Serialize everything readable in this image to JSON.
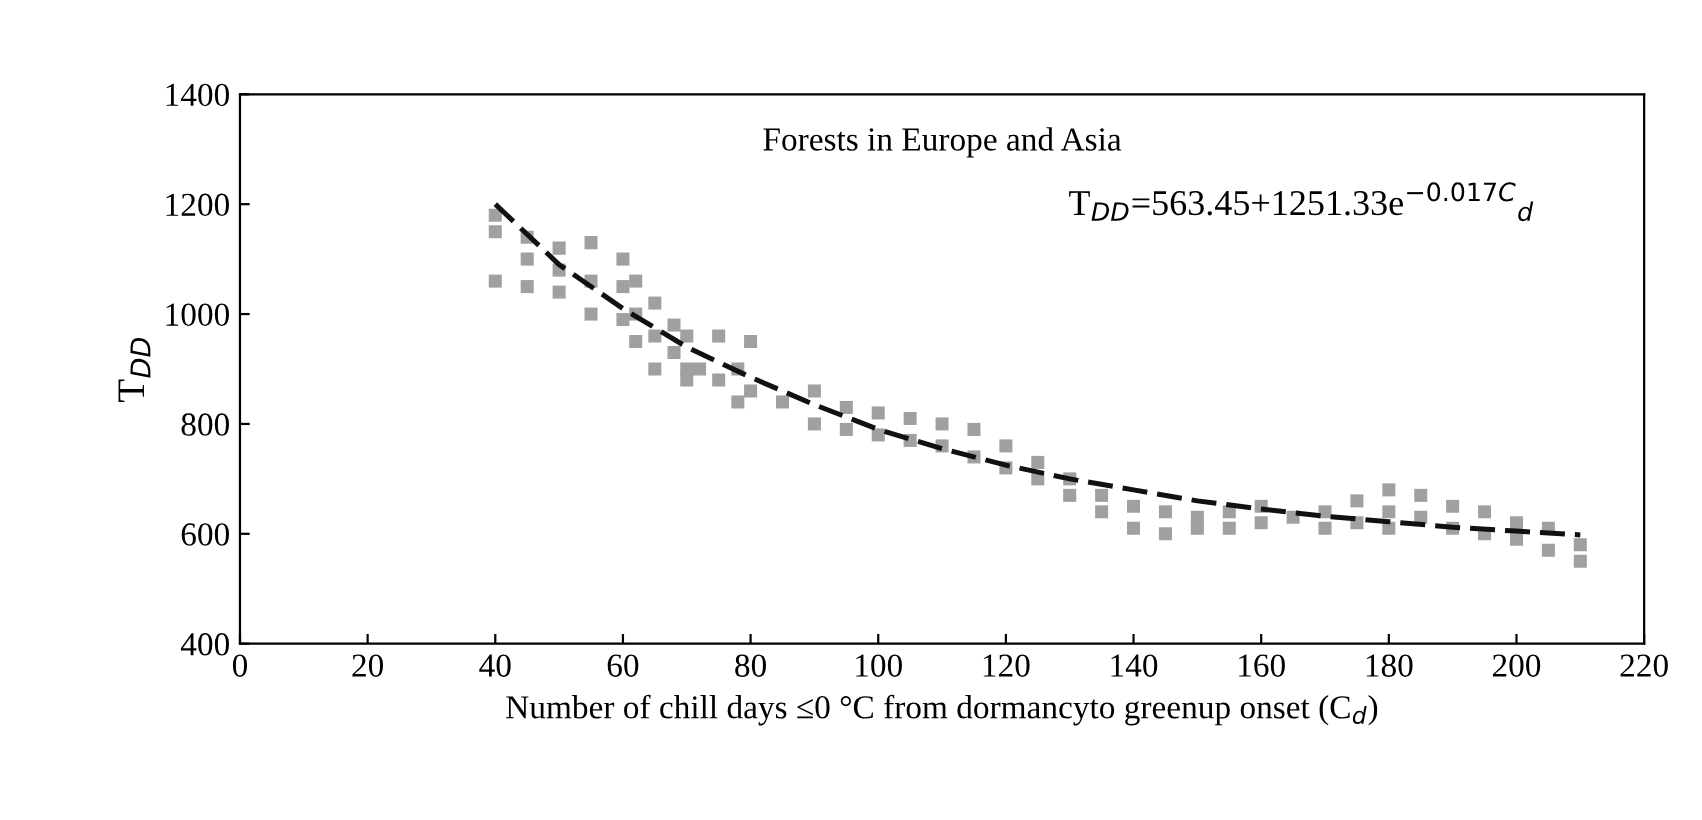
{
  "chart_data": {
    "type": "scatter",
    "title": "Forests in Europe and Asia",
    "xlabel": "Number of chill days ≤0 °C from dormancyto greenup onset (C$_{d}$)",
    "ylabel": "T$_{DD}$",
    "annotations": [
      "T$_{DD}$=563.45+1251.33e$^{−0.017C}$$_{d}$"
    ],
    "xlim": [
      0,
      220
    ],
    "ylim": [
      400,
      1400
    ],
    "xticks": [
      0,
      20,
      40,
      60,
      80,
      100,
      120,
      140,
      160,
      180,
      200,
      220
    ],
    "yticks": [
      400,
      600,
      800,
      1000,
      1200,
      1400
    ],
    "grid": false,
    "series": [
      {
        "marker": "square",
        "color": "#a0a0a0",
        "x": [
          40,
          40,
          40,
          45,
          45,
          45,
          50,
          50,
          50,
          55,
          55,
          55,
          60,
          60,
          60,
          62,
          62,
          62,
          65,
          65,
          65,
          68,
          68,
          70,
          70,
          70,
          72,
          75,
          75,
          78,
          78,
          80,
          80,
          85,
          90,
          90,
          95,
          95,
          100,
          100,
          105,
          105,
          110,
          110,
          115,
          115,
          120,
          120,
          125,
          125,
          130,
          130,
          135,
          135,
          140,
          140,
          145,
          145,
          150,
          150,
          155,
          155,
          160,
          160,
          165,
          170,
          170,
          175,
          175,
          180,
          180,
          180,
          185,
          185,
          190,
          190,
          195,
          195,
          200,
          200,
          205,
          205,
          210,
          210
        ],
        "values": [
          1180,
          1150,
          1060,
          1140,
          1100,
          1050,
          1120,
          1080,
          1040,
          1130,
          1060,
          1000,
          1100,
          1050,
          990,
          1060,
          1000,
          950,
          1020,
          960,
          900,
          980,
          930,
          960,
          900,
          880,
          900,
          880,
          960,
          900,
          840,
          950,
          860,
          840,
          860,
          800,
          830,
          790,
          820,
          780,
          810,
          770,
          800,
          760,
          790,
          740,
          760,
          720,
          730,
          700,
          700,
          670,
          670,
          640,
          650,
          610,
          640,
          600,
          630,
          610,
          640,
          610,
          650,
          620,
          630,
          640,
          610,
          660,
          620,
          680,
          640,
          610,
          670,
          630,
          650,
          610,
          640,
          600,
          620,
          590,
          610,
          570,
          580,
          550
        ]
      },
      {
        "type": "line",
        "color": "#111111",
        "line_style": "dashed",
        "x": [
          40,
          50,
          60,
          70,
          80,
          90,
          100,
          110,
          120,
          130,
          140,
          150,
          160,
          170,
          180,
          190,
          200,
          210
        ],
        "values": [
          1200,
          1090,
          1010,
          940,
          885,
          835,
          790,
          755,
          725,
          700,
          680,
          660,
          645,
          632,
          622,
          612,
          605,
          598
        ]
      }
    ]
  }
}
